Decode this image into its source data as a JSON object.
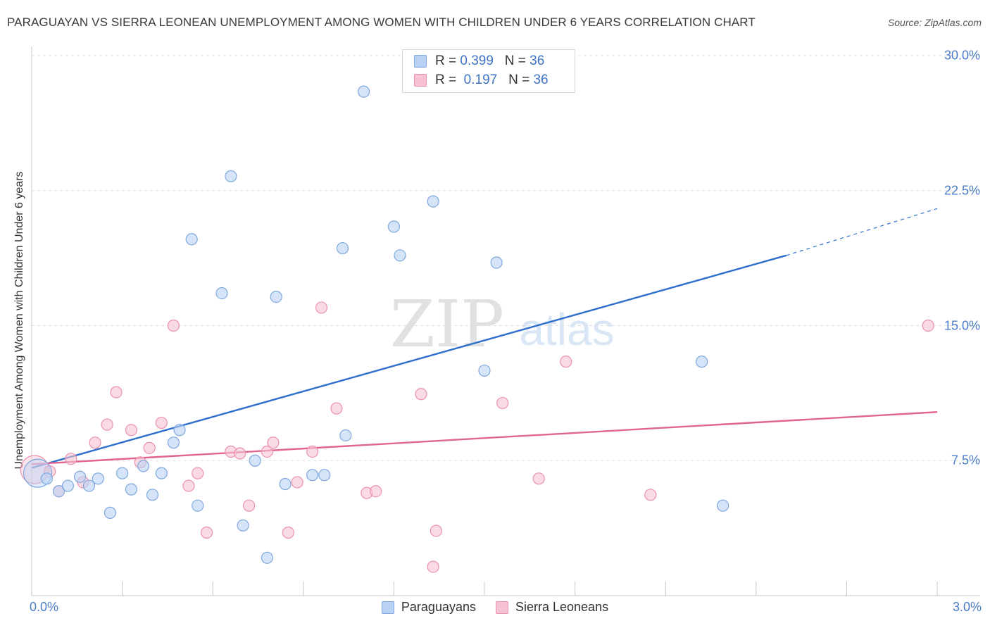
{
  "header": {
    "title": "PARAGUAYAN VS SIERRA LEONEAN UNEMPLOYMENT AMONG WOMEN WITH CHILDREN UNDER 6 YEARS CORRELATION CHART",
    "source": "Source: ZipAtlas.com"
  },
  "legend": {
    "rows": [
      {
        "r_label": "R =",
        "r_value": "0.399",
        "n_label": "N =",
        "n_value": "36"
      },
      {
        "r_label": "R =",
        "r_value": "0.197",
        "n_label": "N =",
        "n_value": "36"
      }
    ]
  },
  "watermark": {
    "zip": "ZIP",
    "atlas": "atlas"
  },
  "colors": {
    "blue_fill": "#b9d2f3",
    "blue_stroke": "#7fa8de",
    "blue_line": "#2e6fcc",
    "pink_fill": "#f7c3d2",
    "pink_stroke": "#eb91ad",
    "pink_line": "#e0648f",
    "tick_text": "#4a7cc9",
    "grid": "#dddddd"
  },
  "chart_data": {
    "type": "scatter",
    "title": "PARAGUAYAN VS SIERRA LEONEAN UNEMPLOYMENT AMONG WOMEN WITH CHILDREN UNDER 6 YEARS CORRELATION CHART",
    "xlabel": "",
    "ylabel": "Unemployment Among Women with Children Under 6 years",
    "xlim": [
      0.0,
      3.0
    ],
    "ylim": [
      0.0,
      30.0
    ],
    "x_tick_labels": [
      "0.0%",
      "3.0%"
    ],
    "y_ticks": [
      7.5,
      15.0,
      22.5,
      30.0
    ],
    "y_tick_labels": [
      "7.5%",
      "15.0%",
      "22.5%",
      "30.0%"
    ],
    "legend_labels": [
      "Paraguayans",
      "Sierra Leoneans"
    ],
    "series": [
      {
        "name": "Paraguayans",
        "r": 0.399,
        "n": 36,
        "trend": {
          "x0": 0.0,
          "y0": 7.1,
          "x1": 2.5,
          "y1": 18.9,
          "dashed_to_x": 3.0,
          "dashed_to_y": 21.5
        },
        "points": [
          {
            "x": 0.02,
            "y": 6.8,
            "big": true
          },
          {
            "x": 0.05,
            "y": 6.5
          },
          {
            "x": 0.09,
            "y": 5.8
          },
          {
            "x": 0.12,
            "y": 6.1
          },
          {
            "x": 0.16,
            "y": 6.6
          },
          {
            "x": 0.19,
            "y": 6.1
          },
          {
            "x": 0.22,
            "y": 6.5
          },
          {
            "x": 0.26,
            "y": 4.6
          },
          {
            "x": 0.3,
            "y": 6.8
          },
          {
            "x": 0.33,
            "y": 5.9
          },
          {
            "x": 0.37,
            "y": 7.2
          },
          {
            "x": 0.4,
            "y": 5.6
          },
          {
            "x": 0.43,
            "y": 6.8
          },
          {
            "x": 0.47,
            "y": 8.5
          },
          {
            "x": 0.49,
            "y": 9.2
          },
          {
            "x": 0.53,
            "y": 19.8
          },
          {
            "x": 0.55,
            "y": 5.0
          },
          {
            "x": 0.63,
            "y": 16.8
          },
          {
            "x": 0.66,
            "y": 23.3
          },
          {
            "x": 0.7,
            "y": 3.9
          },
          {
            "x": 0.74,
            "y": 7.5
          },
          {
            "x": 0.78,
            "y": 2.1
          },
          {
            "x": 0.81,
            "y": 16.6
          },
          {
            "x": 0.84,
            "y": 6.2
          },
          {
            "x": 0.93,
            "y": 6.7
          },
          {
            "x": 0.97,
            "y": 6.7
          },
          {
            "x": 1.03,
            "y": 19.3
          },
          {
            "x": 1.04,
            "y": 8.9
          },
          {
            "x": 1.1,
            "y": 28.0
          },
          {
            "x": 1.2,
            "y": 20.5
          },
          {
            "x": 1.22,
            "y": 18.9
          },
          {
            "x": 1.33,
            "y": 21.9
          },
          {
            "x": 1.5,
            "y": 12.5
          },
          {
            "x": 1.54,
            "y": 18.5
          },
          {
            "x": 2.22,
            "y": 13.0
          },
          {
            "x": 2.29,
            "y": 5.0
          }
        ]
      },
      {
        "name": "Sierra Leoneans",
        "r": 0.197,
        "n": 36,
        "trend": {
          "x0": 0.0,
          "y0": 7.3,
          "x1": 3.0,
          "y1": 10.2
        },
        "points": [
          {
            "x": 0.01,
            "y": 7.0,
            "big": true
          },
          {
            "x": 0.06,
            "y": 6.9
          },
          {
            "x": 0.09,
            "y": 5.8
          },
          {
            "x": 0.13,
            "y": 7.6
          },
          {
            "x": 0.17,
            "y": 6.3
          },
          {
            "x": 0.21,
            "y": 8.5
          },
          {
            "x": 0.25,
            "y": 9.5
          },
          {
            "x": 0.28,
            "y": 11.3
          },
          {
            "x": 0.33,
            "y": 9.2
          },
          {
            "x": 0.36,
            "y": 7.4
          },
          {
            "x": 0.39,
            "y": 8.2
          },
          {
            "x": 0.43,
            "y": 9.6
          },
          {
            "x": 0.47,
            "y": 15.0
          },
          {
            "x": 0.52,
            "y": 6.1
          },
          {
            "x": 0.55,
            "y": 6.8
          },
          {
            "x": 0.58,
            "y": 3.5
          },
          {
            "x": 0.66,
            "y": 8.0
          },
          {
            "x": 0.69,
            "y": 7.9
          },
          {
            "x": 0.72,
            "y": 5.0
          },
          {
            "x": 0.78,
            "y": 8.0
          },
          {
            "x": 0.8,
            "y": 8.5
          },
          {
            "x": 0.85,
            "y": 3.5
          },
          {
            "x": 0.88,
            "y": 6.3
          },
          {
            "x": 0.93,
            "y": 8.0
          },
          {
            "x": 0.96,
            "y": 16.0
          },
          {
            "x": 1.01,
            "y": 10.4
          },
          {
            "x": 1.11,
            "y": 5.7
          },
          {
            "x": 1.14,
            "y": 5.8
          },
          {
            "x": 1.29,
            "y": 11.2
          },
          {
            "x": 1.33,
            "y": 1.6
          },
          {
            "x": 1.34,
            "y": 3.6
          },
          {
            "x": 1.56,
            "y": 10.7
          },
          {
            "x": 1.68,
            "y": 6.5
          },
          {
            "x": 1.77,
            "y": 13.0
          },
          {
            "x": 2.05,
            "y": 5.6
          },
          {
            "x": 2.97,
            "y": 15.0
          }
        ]
      }
    ]
  }
}
